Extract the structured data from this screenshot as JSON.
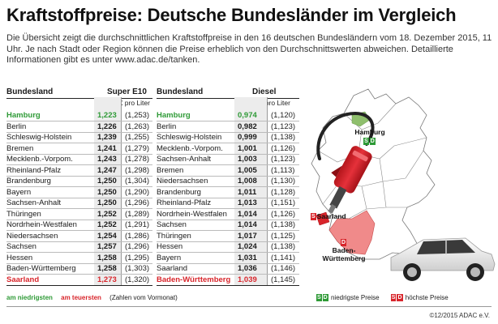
{
  "title": "Kraftstoffpreise: Deutsche Bundesländer im Vergleich",
  "intro": "Die Übersicht zeigt die durchschnittlichen Kraftstoffpreise in den 16 deutschen Bundesländern vom 18. Dezember 2015, 11 Uhr. Je nach Stadt oder Region können die Preise erheblich von den Durchschnittswerten abweichen. Detaillierte Informationen gibt es unter www.adac.de/tanken.",
  "e10": {
    "col_land": "Bundesland",
    "col_fuel": "Super E10",
    "subheader": "Preis in € pro Liter",
    "rows": [
      {
        "land": "Hamburg",
        "val": "1,223",
        "prev": "(1,253)",
        "mark": "low"
      },
      {
        "land": "Berlin",
        "val": "1,226",
        "prev": "(1,263)",
        "mark": ""
      },
      {
        "land": "Schleswig-Holstein",
        "val": "1,239",
        "prev": "(1,255)",
        "mark": ""
      },
      {
        "land": "Bremen",
        "val": "1,241",
        "prev": "(1,279)",
        "mark": ""
      },
      {
        "land": "Mecklenb.-Vorpom.",
        "val": "1,243",
        "prev": "(1,278)",
        "mark": ""
      },
      {
        "land": "Rheinland-Pfalz",
        "val": "1,247",
        "prev": "(1,298)",
        "mark": ""
      },
      {
        "land": "Brandenburg",
        "val": "1,250",
        "prev": "(1,304)",
        "mark": ""
      },
      {
        "land": "Bayern",
        "val": "1,250",
        "prev": "(1,290)",
        "mark": ""
      },
      {
        "land": "Sachsen-Anhalt",
        "val": "1,250",
        "prev": "(1,296)",
        "mark": ""
      },
      {
        "land": "Thüringen",
        "val": "1,252",
        "prev": "(1,289)",
        "mark": ""
      },
      {
        "land": "Nordrhein-Westfalen",
        "val": "1,252",
        "prev": "(1,291)",
        "mark": ""
      },
      {
        "land": "Niedersachsen",
        "val": "1,254",
        "prev": "(1,286)",
        "mark": ""
      },
      {
        "land": "Sachsen",
        "val": "1,257",
        "prev": "(1,296)",
        "mark": ""
      },
      {
        "land": "Hessen",
        "val": "1,258",
        "prev": "(1,295)",
        "mark": ""
      },
      {
        "land": "Baden-Württemberg",
        "val": "1,258",
        "prev": "(1,303)",
        "mark": ""
      },
      {
        "land": "Saarland",
        "val": "1,273",
        "prev": "(1,320)",
        "mark": "high"
      }
    ]
  },
  "diesel": {
    "col_land": "Bundesland",
    "col_fuel": "Diesel",
    "subheader": "Preis in € pro Liter",
    "rows": [
      {
        "land": "Hamburg",
        "val": "0,974",
        "prev": "(1,120)",
        "mark": "low"
      },
      {
        "land": "Berlin",
        "val": "0,982",
        "prev": "(1,123)",
        "mark": ""
      },
      {
        "land": "Schleswig-Holstein",
        "val": "0,999",
        "prev": "(1,138)",
        "mark": ""
      },
      {
        "land": "Mecklenb.-Vorpom.",
        "val": "1,001",
        "prev": "(1,126)",
        "mark": ""
      },
      {
        "land": "Sachsen-Anhalt",
        "val": "1,003",
        "prev": "(1,123)",
        "mark": ""
      },
      {
        "land": "Bremen",
        "val": "1,005",
        "prev": "(1,113)",
        "mark": ""
      },
      {
        "land": "Niedersachsen",
        "val": "1,008",
        "prev": "(1,130)",
        "mark": ""
      },
      {
        "land": "Brandenburg",
        "val": "1,011",
        "prev": "(1,128)",
        "mark": ""
      },
      {
        "land": "Rheinland-Pfalz",
        "val": "1,013",
        "prev": "(1,151)",
        "mark": ""
      },
      {
        "land": "Nordrhein-Westfalen",
        "val": "1,014",
        "prev": "(1,126)",
        "mark": ""
      },
      {
        "land": "Sachsen",
        "val": "1,014",
        "prev": "(1,138)",
        "mark": ""
      },
      {
        "land": "Thüringen",
        "val": "1,017",
        "prev": "(1,125)",
        "mark": ""
      },
      {
        "land": "Hessen",
        "val": "1,024",
        "prev": "(1,138)",
        "mark": ""
      },
      {
        "land": "Bayern",
        "val": "1,031",
        "prev": "(1,141)",
        "mark": ""
      },
      {
        "land": "Saarland",
        "val": "1,036",
        "prev": "(1,146)",
        "mark": ""
      },
      {
        "land": "Baden-Württemberg",
        "val": "1,039",
        "prev": "(1,145)",
        "mark": "high"
      }
    ]
  },
  "legend": {
    "low": "am niedrigsten",
    "high": "am teuersten",
    "note": "(Zahlen vom Vormonat)",
    "badge_s": "S",
    "badge_d": "D",
    "low_prices": "niedrigste Preise",
    "high_prices": "höchste Preise"
  },
  "map": {
    "hamburg": "Hamburg",
    "saarland": "Saarland",
    "bw": "Baden-Württemberg",
    "bw_line1": "Baden-",
    "bw_line2": "Württemberg"
  },
  "colors": {
    "low": "#2e9a36",
    "high": "#d8252b"
  },
  "copyright": "©12/2015 ADAC e.V."
}
